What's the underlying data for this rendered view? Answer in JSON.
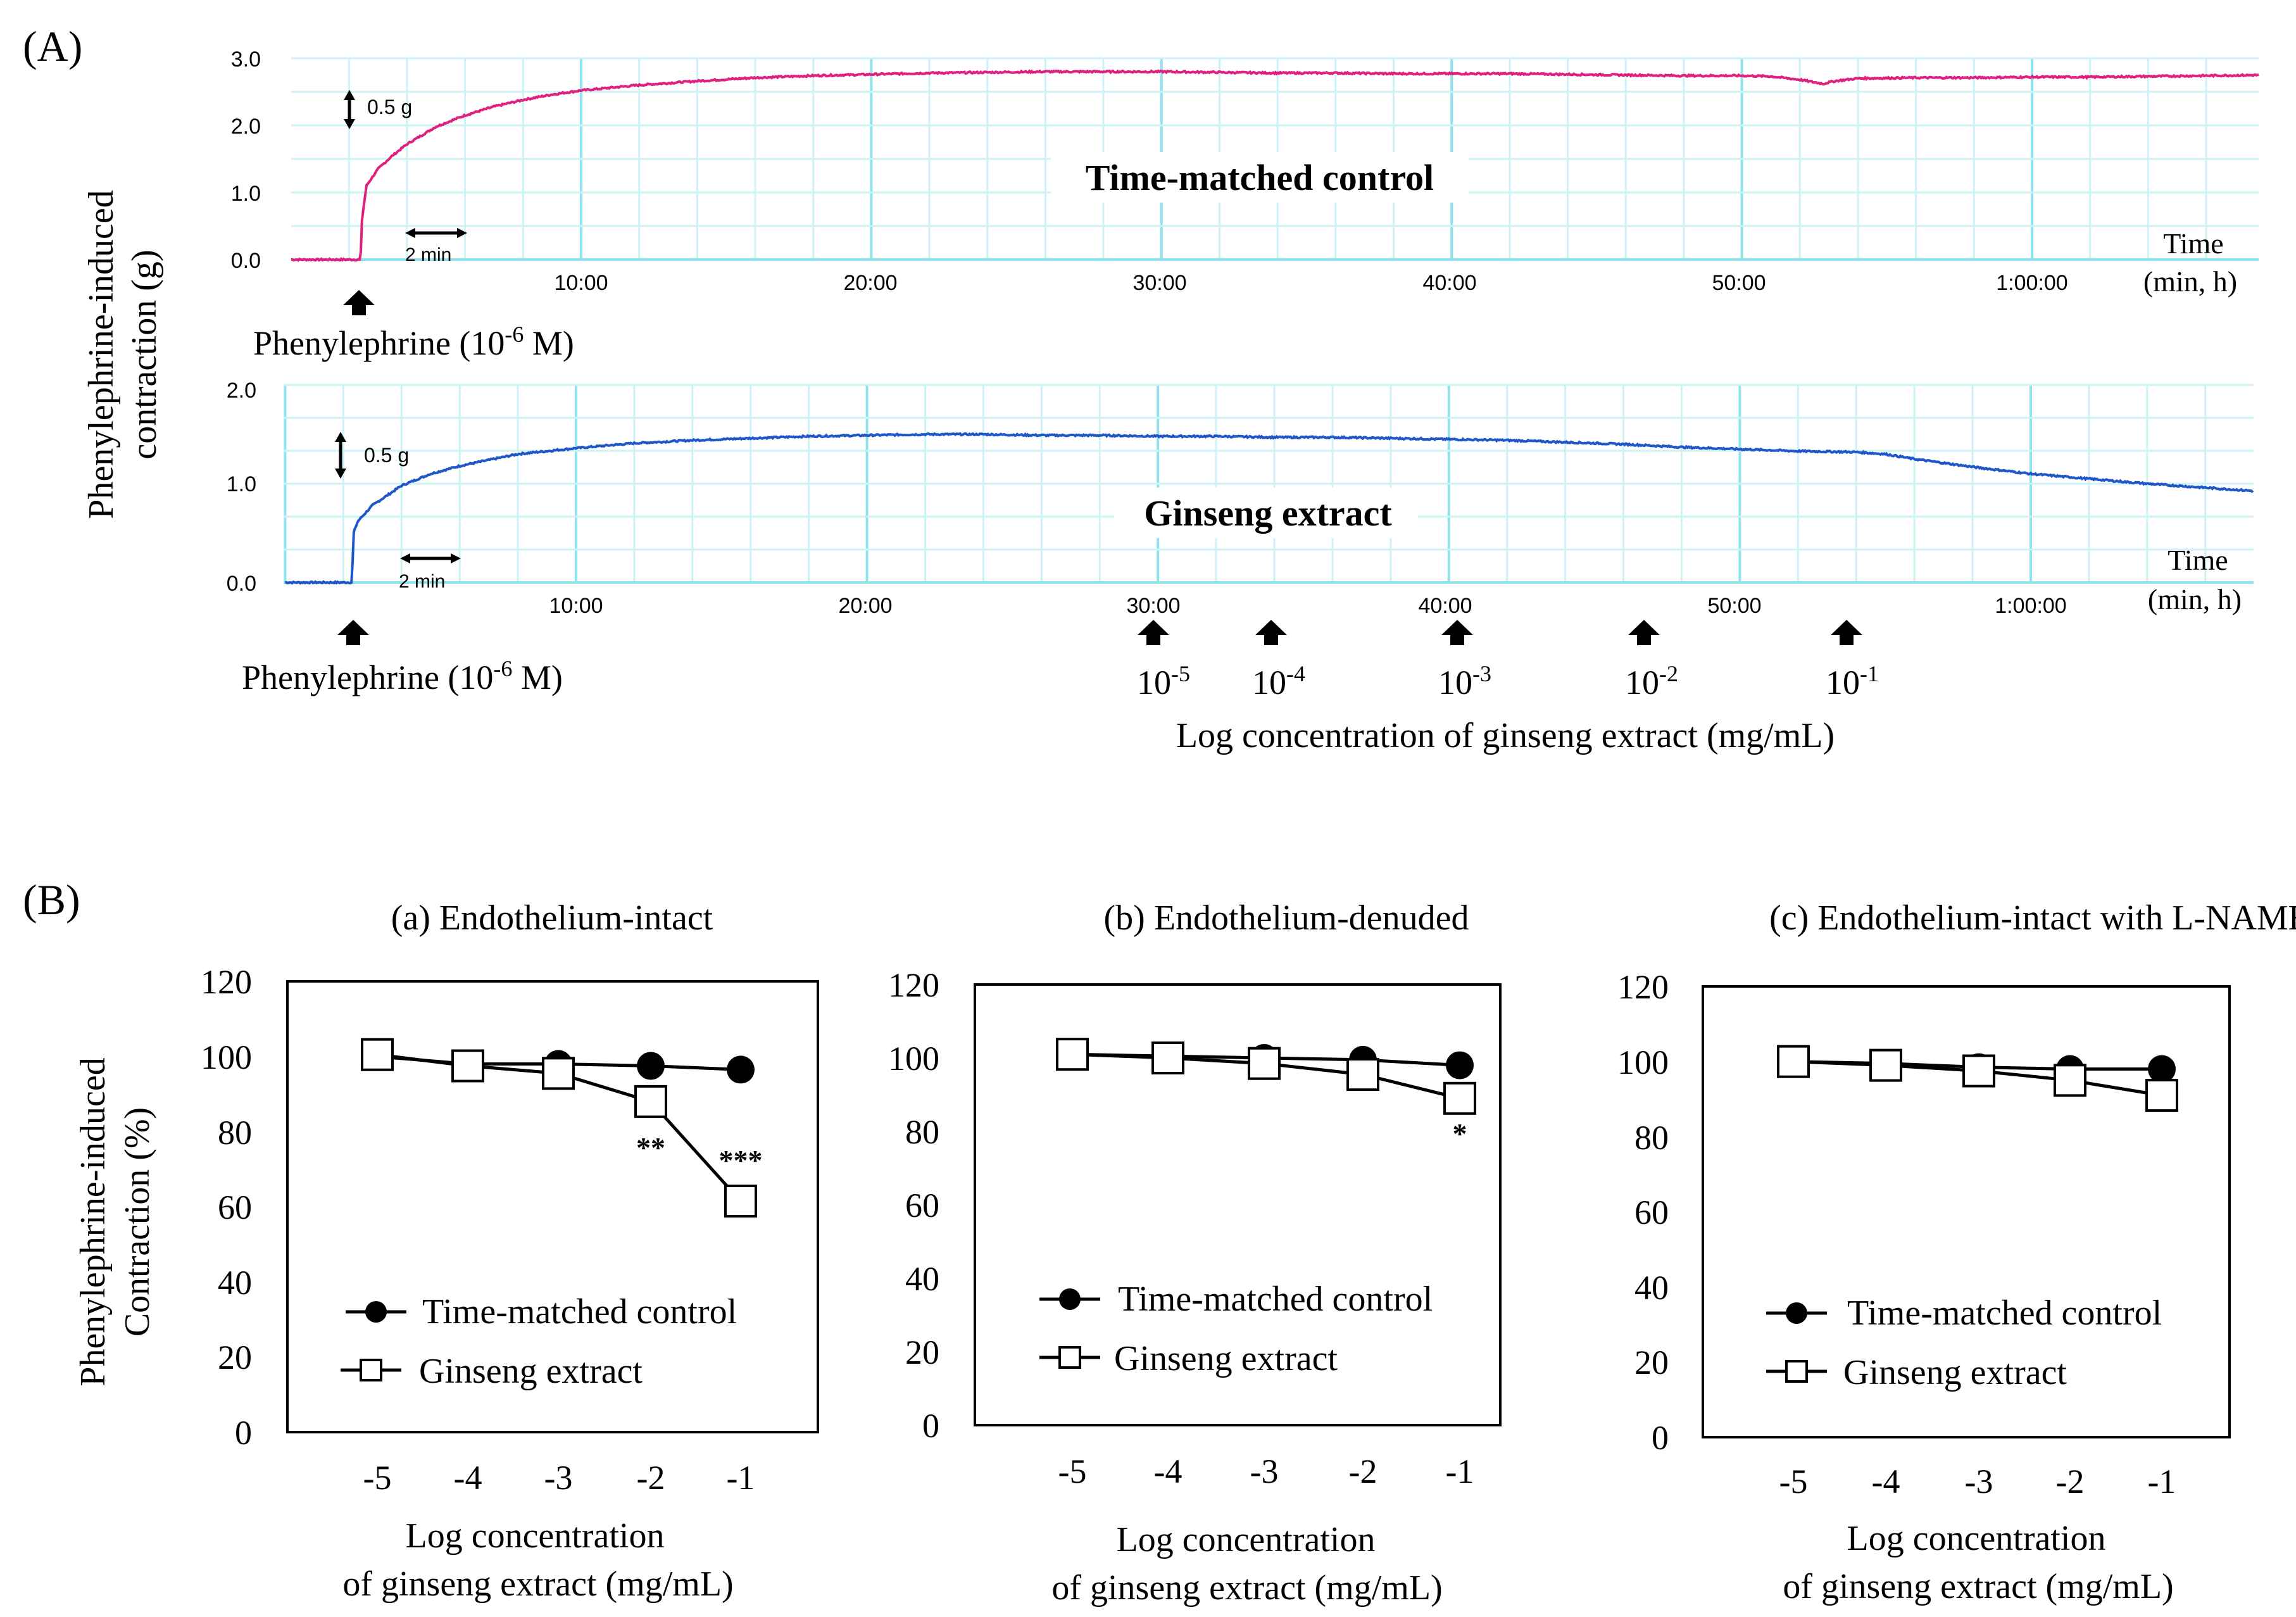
{
  "panel_labels": {
    "A": "(A)",
    "B": "(B)"
  },
  "colors": {
    "control_trace": "#e0207f",
    "ginseng_trace": "#1f56c8",
    "grid_major": "#8fe3ea",
    "grid_minor": "#cdf3f6",
    "ink": "#000000"
  },
  "panel_a": {
    "ylabel": [
      "Phenylephrine-induced",
      "contraction (g)"
    ],
    "top": {
      "title": "Time-matched control",
      "yticks": [
        "0.0",
        "1.0",
        "2.0",
        "3.0"
      ],
      "xticks": [
        "10:00",
        "20:00",
        "30:00",
        "40:00",
        "50:00",
        "1:00:00"
      ],
      "time_label": [
        "Time",
        "(min, h)"
      ],
      "scale_y": "0.5 g",
      "scale_x": "2 min",
      "arrow_label": "Phenylephrine (10",
      "arrow_exp": "-6",
      "arrow_unit": " M)"
    },
    "bottom": {
      "title": "Ginseng extract",
      "yticks": [
        "0.0",
        "1.0",
        "2.0"
      ],
      "xticks": [
        "10:00",
        "20:00",
        "30:00",
        "40:00",
        "50:00",
        "1:00:00"
      ],
      "time_label": [
        "Time",
        "(min, h)"
      ],
      "scale_y": "0.5 g",
      "scale_x": "2 min",
      "arrow_label": "Phenylephrine (10",
      "arrow_exp": "-6",
      "arrow_unit": " M)",
      "conc_base": "10",
      "conc_exps": [
        "-5",
        "-4",
        "-3",
        "-2",
        "-1"
      ],
      "conc_axis_label": "Log concentration of ginseng extract (mg/mL)"
    }
  },
  "chart_data": [
    {
      "type": "line",
      "title": "Time-matched control",
      "xlabel": "Time (min, h)",
      "ylabel": "Phenylephrine-induced contraction (g)",
      "xlim": [
        0,
        68
      ],
      "ylim": [
        0,
        3.0
      ],
      "series": [
        {
          "name": "Time-matched control",
          "x": [
            0,
            2.4,
            2.45,
            2.6,
            3,
            3.5,
            4,
            5,
            6,
            7,
            8,
            9,
            10,
            12,
            14,
            16,
            18,
            20,
            22,
            24,
            26,
            28,
            30,
            32,
            34,
            36,
            38,
            40,
            42,
            44,
            46,
            48,
            50,
            51,
            52,
            52.8,
            53.2,
            54,
            56,
            58,
            60,
            62,
            64,
            66,
            68
          ],
          "y": [
            0.0,
            0.0,
            0.6,
            1.1,
            1.35,
            1.55,
            1.72,
            1.98,
            2.15,
            2.28,
            2.38,
            2.46,
            2.52,
            2.6,
            2.66,
            2.71,
            2.74,
            2.76,
            2.78,
            2.79,
            2.8,
            2.8,
            2.8,
            2.79,
            2.78,
            2.78,
            2.77,
            2.77,
            2.77,
            2.76,
            2.75,
            2.74,
            2.74,
            2.73,
            2.68,
            2.62,
            2.66,
            2.7,
            2.71,
            2.71,
            2.72,
            2.72,
            2.73,
            2.74,
            2.75
          ]
        }
      ]
    },
    {
      "type": "line",
      "title": "Ginseng extract",
      "xlabel": "Time (min, h)",
      "ylabel": "Phenylephrine-induced contraction (g)",
      "xlim": [
        0,
        68
      ],
      "ylim": [
        0,
        2.0
      ],
      "series": [
        {
          "name": "Ginseng extract",
          "x": [
            0,
            2.3,
            2.35,
            2.5,
            3,
            4,
            5,
            6,
            7,
            8,
            10,
            12,
            14,
            16,
            18,
            20,
            22,
            24,
            26,
            28,
            30,
            32,
            34,
            36,
            38,
            40,
            42,
            44,
            46,
            48,
            50,
            52,
            54,
            55,
            56,
            58,
            60,
            62,
            64,
            66,
            68
          ],
          "y": [
            0.0,
            0.0,
            0.5,
            0.62,
            0.78,
            0.98,
            1.1,
            1.18,
            1.24,
            1.3,
            1.36,
            1.41,
            1.44,
            1.46,
            1.48,
            1.49,
            1.5,
            1.5,
            1.49,
            1.49,
            1.48,
            1.48,
            1.47,
            1.47,
            1.46,
            1.45,
            1.44,
            1.42,
            1.4,
            1.37,
            1.35,
            1.33,
            1.32,
            1.3,
            1.25,
            1.17,
            1.1,
            1.05,
            1.0,
            0.96,
            0.92
          ]
        }
      ],
      "annotations": {
        "ginseng_additions_min": [
          30,
          34,
          40.3,
          46.8,
          54.1
        ],
        "phenylephrine_addition_min": 2.4
      }
    },
    {
      "type": "line",
      "title": "(a) Endothelium-intact",
      "xlabel": [
        "Log concentration",
        "of ginseng extract (mg/mL)"
      ],
      "ylabel": [
        "Phenylephrine-induced",
        "Contraction (%)"
      ],
      "categories": [
        "-5",
        "-4",
        "-3",
        "-2",
        "-1"
      ],
      "yticks": [
        "0",
        "20",
        "40",
        "60",
        "80",
        "100",
        "120"
      ],
      "ylim": [
        0,
        120
      ],
      "series": [
        {
          "name": "Time-matched control",
          "values": [
            100,
            98,
            98,
            97.5,
            96.5
          ]
        },
        {
          "name": "Ginseng extract",
          "values": [
            100.5,
            97.5,
            95.5,
            88,
            61.5
          ]
        }
      ],
      "significance": [
        {
          "category": "-2",
          "label": "**"
        },
        {
          "category": "-1",
          "label": "***"
        }
      ]
    },
    {
      "type": "line",
      "title": "(b) Endothelium-denuded",
      "xlabel": [
        "Log concentration",
        "of ginseng extract (mg/mL)"
      ],
      "ylabel": [
        "Phenylephrine-induced",
        "Contraction (%)"
      ],
      "categories": [
        "-5",
        "-4",
        "-3",
        "-2",
        "-1"
      ],
      "yticks": [
        "0",
        "20",
        "40",
        "60",
        "80",
        "100",
        "120"
      ],
      "ylim": [
        0,
        120
      ],
      "series": [
        {
          "name": "Time-matched control",
          "values": [
            101,
            100.5,
            100,
            99.5,
            98
          ]
        },
        {
          "name": "Ginseng extract",
          "values": [
            101,
            100,
            98.5,
            95.5,
            89
          ]
        }
      ],
      "significance": [
        {
          "category": "-1",
          "label": "*"
        }
      ]
    },
    {
      "type": "line",
      "title": "(c) Endothelium-intact with L-NAME",
      "xlabel": [
        "Log concentration",
        "of ginseng extract (mg/mL)"
      ],
      "ylabel": [
        "Phenylephrine-induced",
        "Contraction (%)"
      ],
      "categories": [
        "-5",
        "-4",
        "-3",
        "-2",
        "-1"
      ],
      "yticks": [
        "0",
        "20",
        "40",
        "60",
        "80",
        "100",
        "120"
      ],
      "ylim": [
        0,
        120
      ],
      "series": [
        {
          "name": "Time-matched control",
          "values": [
            100,
            99.5,
            98.5,
            98,
            98
          ]
        },
        {
          "name": "Ginseng extract",
          "values": [
            100,
            99,
            97.5,
            95,
            91
          ]
        }
      ],
      "significance": []
    }
  ]
}
